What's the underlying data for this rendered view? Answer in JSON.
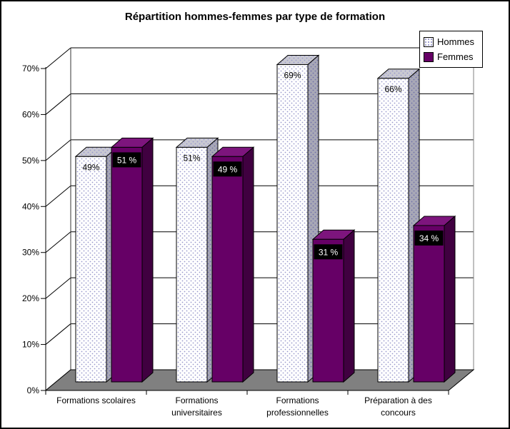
{
  "chart_data": {
    "type": "bar",
    "style": "3d-clustered-column",
    "title": "Répartition hommes-femmes par type de formation",
    "categories": [
      "Formations scolaires",
      "Formations universitaires",
      "Formations professionnelles",
      "Préparation à des concours"
    ],
    "series": [
      {
        "name": "Hommes",
        "values": [
          49,
          51,
          69,
          66
        ],
        "labels": [
          "49%",
          "51%",
          "69%",
          "66%"
        ],
        "fill_style": "dotted-pattern",
        "colors": {
          "dot": "#9999cc",
          "side_dot": "#7070aa",
          "front_bg": "#ffffff",
          "top_bg": "#c9c9d2",
          "side_bg": "#a8a8b6"
        },
        "label_style": "black-text-on-bar"
      },
      {
        "name": "Femmes",
        "values": [
          51,
          49,
          31,
          34
        ],
        "labels": [
          "51 %",
          "49 %",
          "31 %",
          "34 %"
        ],
        "fill_style": "solid",
        "colors": {
          "front": "#660066",
          "top": "#7d157d",
          "side": "#400040"
        },
        "label_style": "white-text-on-black-box"
      }
    ],
    "ylim": [
      0,
      70
    ],
    "ytick_step": 10,
    "ytick_labels": [
      "0%",
      "10%",
      "20%",
      "30%",
      "40%",
      "50%",
      "60%",
      "70%"
    ],
    "grid": true,
    "legend_position": "top-right",
    "structure_colors": {
      "gridline": "#000000",
      "axis": "#000000",
      "floor": "#808080",
      "wall_right_edge": "#808080",
      "background": "#ffffff"
    }
  }
}
